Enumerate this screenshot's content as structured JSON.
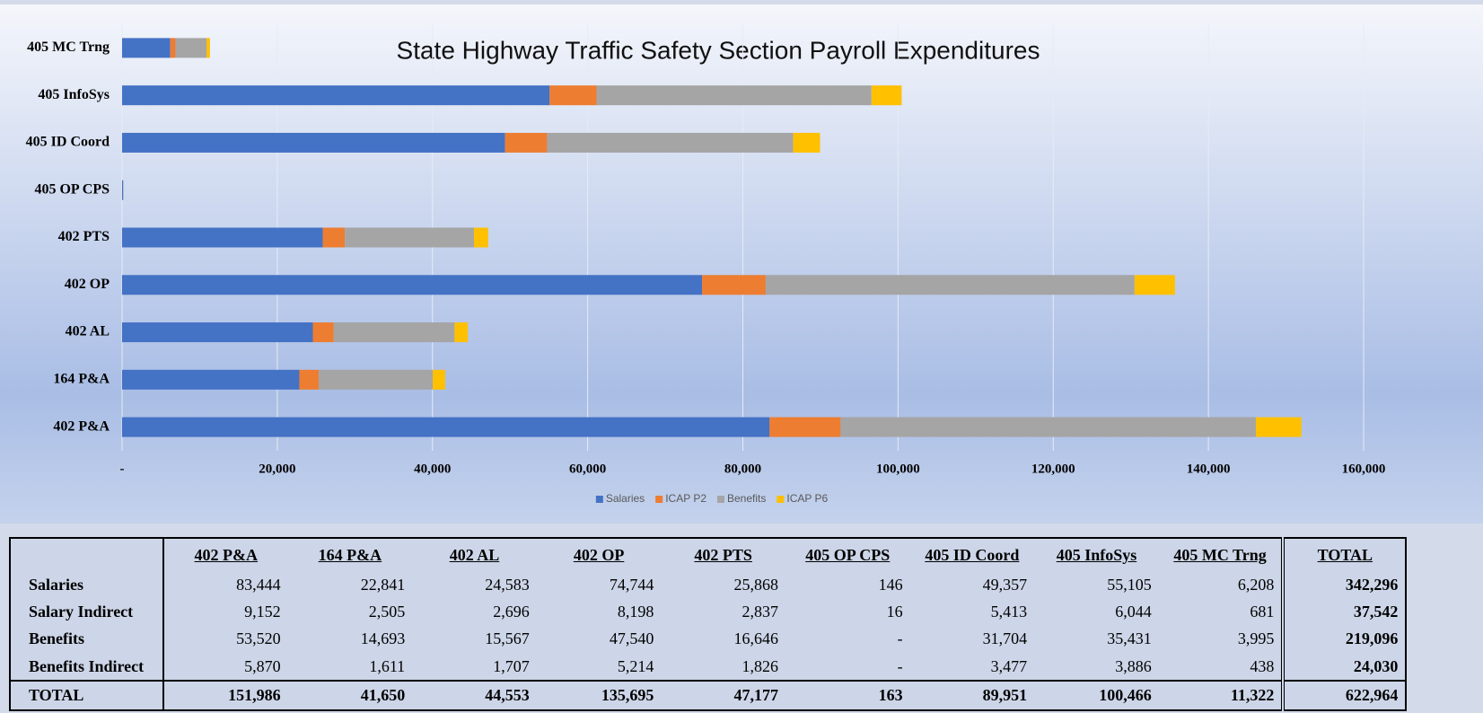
{
  "chart_data": {
    "type": "bar",
    "orientation": "horizontal",
    "stacked": true,
    "title": "State Highway Traffic Safety Section Payroll Expenditures",
    "categories": [
      "402 P&A",
      "164 P&A",
      "402 AL",
      "402 OP",
      "402 PTS",
      "405 OP CPS",
      "405 ID Coord",
      "405 InfoSys",
      "405 MC Trng"
    ],
    "series": [
      {
        "name": "Salaries",
        "color": "#4472c4",
        "values": [
          83444,
          22841,
          24583,
          74744,
          25868,
          146,
          49357,
          55105,
          6208
        ]
      },
      {
        "name": "ICAP P2",
        "color": "#ed7d31",
        "values": [
          9152,
          2505,
          2696,
          8198,
          2837,
          16,
          5413,
          6044,
          681
        ]
      },
      {
        "name": "Benefits",
        "color": "#a5a5a5",
        "values": [
          53520,
          14693,
          15567,
          47540,
          16646,
          0,
          31704,
          35431,
          3995
        ]
      },
      {
        "name": "ICAP P6",
        "color": "#ffc000",
        "values": [
          5870,
          1611,
          1707,
          5214,
          1826,
          0,
          3477,
          3886,
          438
        ]
      }
    ],
    "xlim": [
      0,
      160000
    ],
    "xticks": [
      {
        "value": 0,
        "label": "-"
      },
      {
        "value": 20000,
        "label": "20,000"
      },
      {
        "value": 40000,
        "label": "40,000"
      },
      {
        "value": 60000,
        "label": "60,000"
      },
      {
        "value": 80000,
        "label": "80,000"
      },
      {
        "value": 100000,
        "label": "100,000"
      },
      {
        "value": 120000,
        "label": "120,000"
      },
      {
        "value": 140000,
        "label": "140,000"
      },
      {
        "value": 160000,
        "label": "160,000"
      }
    ],
    "grid": true,
    "legend": "bottom"
  },
  "table": {
    "columns": [
      "402 P&A",
      "164 P&A",
      "402 AL",
      "402 OP",
      "402 PTS",
      "405 OP CPS",
      "405 ID Coord",
      "405 InfoSys",
      "405 MC Trng",
      "TOTAL"
    ],
    "rows": [
      {
        "label": "Salaries",
        "cells": [
          "83,444",
          "22,841",
          "24,583",
          "74,744",
          "25,868",
          "146",
          "49,357",
          "55,105",
          "6,208",
          "342,296"
        ]
      },
      {
        "label": "Salary Indirect",
        "cells": [
          "9,152",
          "2,505",
          "2,696",
          "8,198",
          "2,837",
          "16",
          "5,413",
          "6,044",
          "681",
          "37,542"
        ]
      },
      {
        "label": "Benefits",
        "cells": [
          "53,520",
          "14,693",
          "15,567",
          "47,540",
          "16,646",
          "-",
          "31,704",
          "35,431",
          "3,995",
          "219,096"
        ]
      },
      {
        "label": "Benefits Indirect",
        "cells": [
          "5,870",
          "1,611",
          "1,707",
          "5,214",
          "1,826",
          "-",
          "3,477",
          "3,886",
          "438",
          "24,030"
        ]
      },
      {
        "label": "TOTAL",
        "cells": [
          "151,986",
          "41,650",
          "44,553",
          "135,695",
          "47,177",
          "163",
          "89,951",
          "100,466",
          "11,322",
          "622,964"
        ]
      }
    ]
  }
}
